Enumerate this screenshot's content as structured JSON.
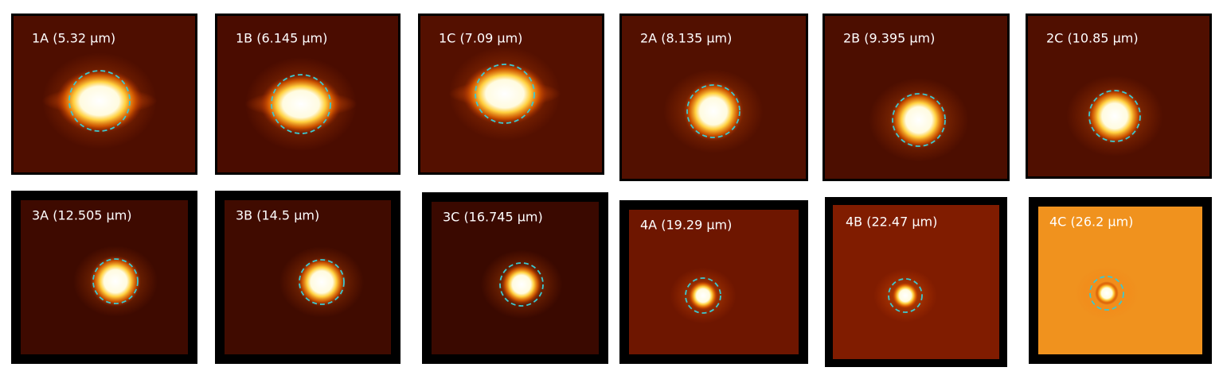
{
  "panels": [
    "1A (5.32 μm)",
    "1B (6.145 μm)",
    "1C (7.09 μm)",
    "2A (8.135 μm)",
    "2B (9.395 μm)",
    "2C (10.85 μm)",
    "3A (12.505 μm)",
    "3B (14.5 μm)",
    "3C (16.745 μm)",
    "4A (19.29 μm)",
    "4B (22.47 μm)",
    "4C (26.2 μm)"
  ]
}
